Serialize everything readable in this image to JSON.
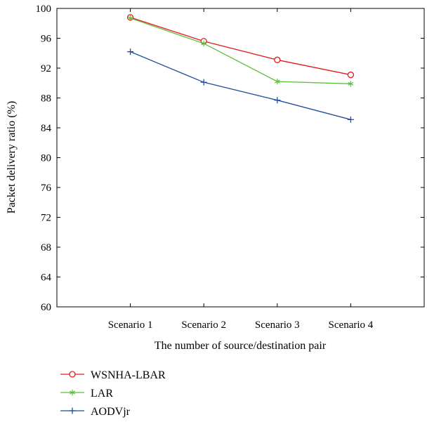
{
  "chart_data": {
    "type": "line",
    "title": "",
    "xlabel": "The number of source/destination pair",
    "ylabel": "Packet delivery ratio (%)",
    "categories": [
      "Scenario 1",
      "Scenario 2",
      "Scenario 3",
      "Scenario 4"
    ],
    "xlim": [
      0,
      5
    ],
    "ylim": [
      60,
      100
    ],
    "yticks": [
      60,
      64,
      68,
      72,
      76,
      80,
      84,
      88,
      92,
      96,
      100
    ],
    "grid": false,
    "legend_position": "bottom-left",
    "series": [
      {
        "name": "WSNHA-LBAR",
        "color": "#e41a1c",
        "marker": "circle",
        "values": [
          98.8,
          95.6,
          93.1,
          91.1
        ]
      },
      {
        "name": "LAR",
        "color": "#5bbf3a",
        "marker": "star",
        "values": [
          98.7,
          95.3,
          90.2,
          89.9
        ]
      },
      {
        "name": "AODVjr",
        "color": "#1f4e9c",
        "marker": "plus",
        "values": [
          94.2,
          90.1,
          87.7,
          85.1
        ]
      }
    ]
  }
}
